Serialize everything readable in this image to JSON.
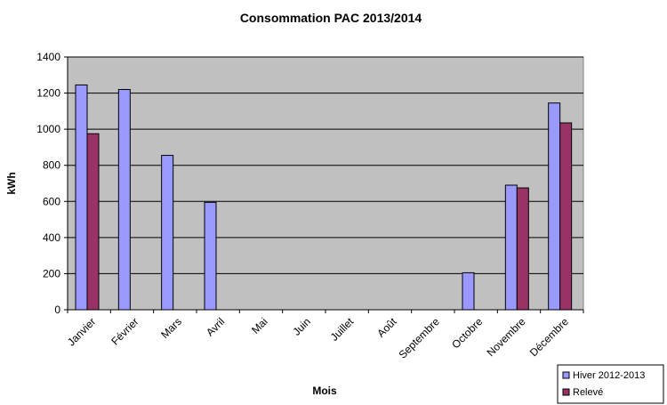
{
  "chart_data": {
    "type": "bar",
    "title": "Consommation PAC 2013/2014",
    "xlabel": "Mois",
    "ylabel": "kWh",
    "ylim": [
      0,
      1400
    ],
    "yticks": [
      0,
      200,
      400,
      600,
      800,
      1000,
      1200,
      1400
    ],
    "grid": true,
    "legend_position": "bottom-right",
    "categories": [
      "Janvier",
      "Février",
      "Mars",
      "Avril",
      "Mai",
      "Juin",
      "Juillet",
      "Août",
      "Septembre",
      "Octobre",
      "Novembre",
      "Décembre"
    ],
    "series": [
      {
        "name": "Hiver 2012-2013",
        "color": "#9999ff",
        "values": [
          1245,
          1220,
          855,
          595,
          0,
          0,
          0,
          0,
          0,
          205,
          690,
          1145
        ]
      },
      {
        "name": "Relevé",
        "color": "#993366",
        "values": [
          975,
          0,
          0,
          0,
          0,
          0,
          0,
          0,
          0,
          0,
          675,
          1035
        ]
      }
    ],
    "plot_background": "#c0c0c0"
  }
}
